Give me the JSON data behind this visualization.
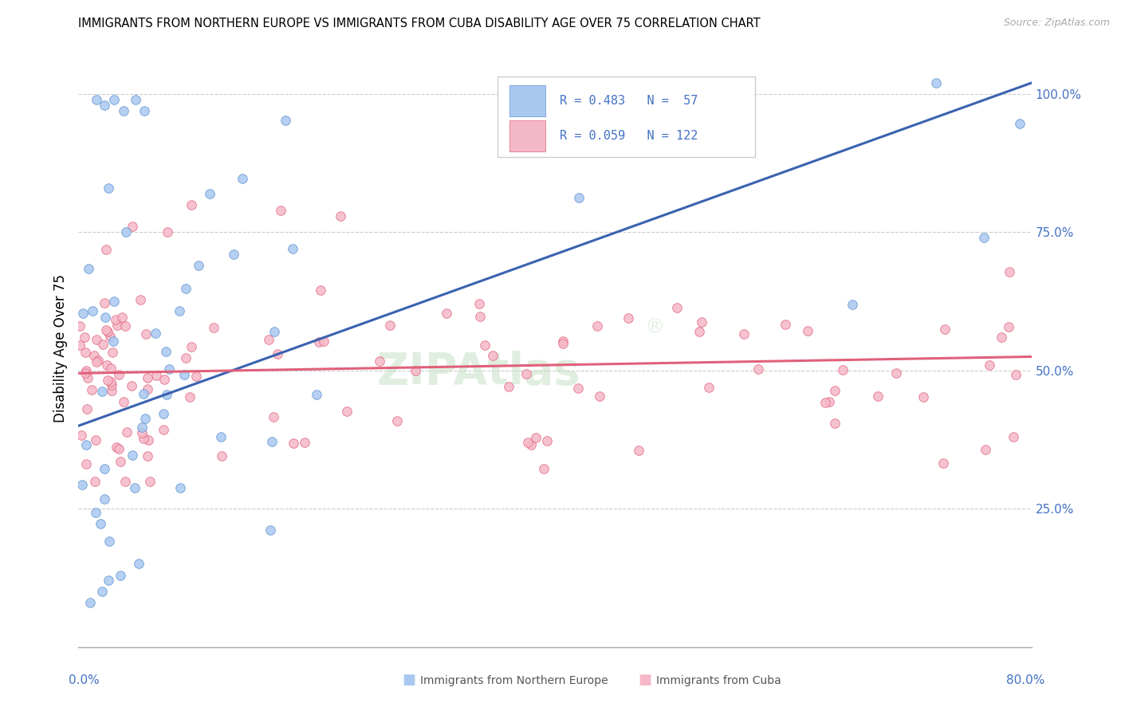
{
  "title": "IMMIGRANTS FROM NORTHERN EUROPE VS IMMIGRANTS FROM CUBA DISABILITY AGE OVER 75 CORRELATION CHART",
  "source": "Source: ZipAtlas.com",
  "ylabel": "Disability Age Over 75",
  "xmin": 0.0,
  "xmax": 0.8,
  "ymin": 0.0,
  "ymax": 1.08,
  "series1_color": "#a8c8f0",
  "series1_edge_color": "#5b8fcc",
  "series2_color": "#f5b8c8",
  "series2_edge_color": "#e0607a",
  "trend1_color": "#3a62b0",
  "trend2_color": "#e0607a",
  "R1": 0.483,
  "N1": 57,
  "R2": 0.059,
  "N2": 122,
  "legend_text_color": "#4472c4",
  "right_axis_color": "#4472c4",
  "grid_color": "#cccccc",
  "trend1_x0": 0.0,
  "trend1_y0": 0.4,
  "trend1_x1": 0.8,
  "trend1_y1": 1.02,
  "trend2_x0": 0.0,
  "trend2_y0": 0.495,
  "trend2_x1": 0.8,
  "trend2_y1": 0.525,
  "watermark_color": "#d8e8d8",
  "watermark_alpha": 0.5
}
